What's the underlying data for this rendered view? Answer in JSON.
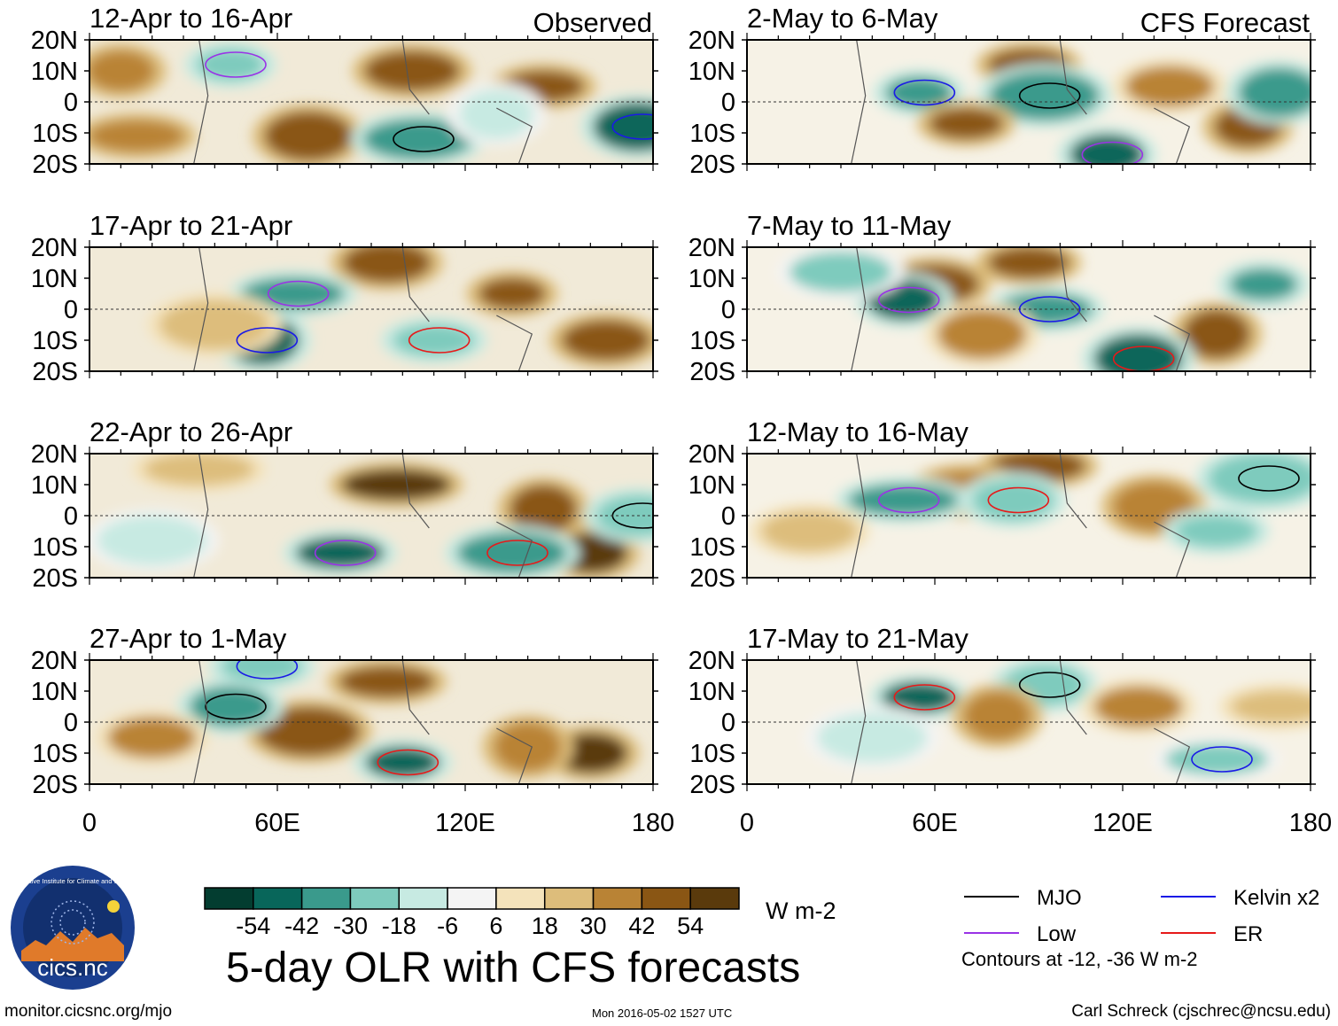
{
  "chart_data": {
    "type": "heatmap",
    "title": "5-day OLR with CFS forecasts",
    "units": "W m-2",
    "column_headers": {
      "observed": "Observed",
      "forecast": "CFS Forecast"
    },
    "lat_ticks": [
      "20N",
      "10N",
      "0",
      "10S",
      "20S"
    ],
    "lon_ticks": [
      "0",
      "60E",
      "120E",
      "180"
    ],
    "lat_range": [
      -20,
      20
    ],
    "lon_range": [
      0,
      180
    ],
    "colorbar": {
      "tick_labels": [
        "-54",
        "-42",
        "-30",
        "-18",
        "-6",
        "6",
        "18",
        "30",
        "42",
        "54"
      ],
      "colors": [
        "#033d30",
        "#08665a",
        "#3a9a8c",
        "#7ecbbd",
        "#c7eae2",
        "#f4f4f4",
        "#f4e3bb",
        "#ddbd7b",
        "#b98335",
        "#8a5614",
        "#5a3a0c"
      ]
    },
    "panels": [
      {
        "column": "observed",
        "label": "12-Apr to 16-Apr",
        "blobs": [
          {
            "lon": 145,
            "lat": 5,
            "v": 44
          },
          {
            "lon": 103,
            "lat": 10,
            "v": 46
          },
          {
            "lon": 70,
            "lat": -11,
            "v": 38
          },
          {
            "lon": 15,
            "lat": -11,
            "v": 32
          },
          {
            "lon": 105,
            "lat": -12,
            "v": -48
          },
          {
            "lon": 175,
            "lat": -8,
            "v": -52
          },
          {
            "lon": 45,
            "lat": 12,
            "v": -28
          },
          {
            "lon": 10,
            "lat": 10,
            "v": 28
          },
          {
            "lon": 130,
            "lat": -4,
            "v": -22
          }
        ]
      },
      {
        "column": "observed",
        "label": "17-Apr to 21-Apr",
        "blobs": [
          {
            "lon": 135,
            "lat": 5,
            "v": 42
          },
          {
            "lon": 95,
            "lat": 15,
            "v": 38
          },
          {
            "lon": 55,
            "lat": -10,
            "v": -50
          },
          {
            "lon": 65,
            "lat": 5,
            "v": -40
          },
          {
            "lon": 165,
            "lat": -10,
            "v": 38
          },
          {
            "lon": 40,
            "lat": -5,
            "v": 20
          },
          {
            "lon": 110,
            "lat": -10,
            "v": -30
          }
        ]
      },
      {
        "column": "observed",
        "label": "22-Apr to 26-Apr",
        "blobs": [
          {
            "lon": 98,
            "lat": 10,
            "v": 48
          },
          {
            "lon": 160,
            "lat": -12,
            "v": 50
          },
          {
            "lon": 145,
            "lat": 2,
            "v": 42
          },
          {
            "lon": 80,
            "lat": -12,
            "v": -52
          },
          {
            "lon": 135,
            "lat": -12,
            "v": -48
          },
          {
            "lon": 20,
            "lat": -8,
            "v": -20
          },
          {
            "lon": 35,
            "lat": 15,
            "v": 20
          },
          {
            "lon": 175,
            "lat": 0,
            "v": -30
          }
        ]
      },
      {
        "column": "observed",
        "label": "27-Apr to 1-May",
        "blobs": [
          {
            "lon": 95,
            "lat": 13,
            "v": 46
          },
          {
            "lon": 160,
            "lat": -10,
            "v": 50
          },
          {
            "lon": 70,
            "lat": -3,
            "v": 40
          },
          {
            "lon": 100,
            "lat": -13,
            "v": -50
          },
          {
            "lon": 45,
            "lat": 5,
            "v": -44
          },
          {
            "lon": 140,
            "lat": -8,
            "v": 28
          },
          {
            "lon": 55,
            "lat": 18,
            "v": -30
          },
          {
            "lon": 20,
            "lat": -5,
            "v": 24
          }
        ]
      },
      {
        "column": "forecast",
        "label": "2-May to 6-May",
        "blobs": [
          {
            "lon": 90,
            "lat": 12,
            "v": 44
          },
          {
            "lon": 160,
            "lat": -8,
            "v": 42
          },
          {
            "lon": 95,
            "lat": 2,
            "v": -48
          },
          {
            "lon": 55,
            "lat": 3,
            "v": -42
          },
          {
            "lon": 115,
            "lat": -17,
            "v": -50
          },
          {
            "lon": 170,
            "lat": 3,
            "v": -44
          },
          {
            "lon": 70,
            "lat": -7,
            "v": 36
          },
          {
            "lon": 135,
            "lat": 5,
            "v": 24
          }
        ]
      },
      {
        "column": "forecast",
        "label": "7-May to 11-May",
        "blobs": [
          {
            "lon": 90,
            "lat": 15,
            "v": 44
          },
          {
            "lon": 60,
            "lat": 8,
            "v": 38
          },
          {
            "lon": 150,
            "lat": -8,
            "v": 42
          },
          {
            "lon": 95,
            "lat": 0,
            "v": -46
          },
          {
            "lon": 50,
            "lat": 3,
            "v": -50
          },
          {
            "lon": 125,
            "lat": -16,
            "v": -52
          },
          {
            "lon": 165,
            "lat": 8,
            "v": -42
          },
          {
            "lon": 30,
            "lat": 12,
            "v": -26
          },
          {
            "lon": 75,
            "lat": -8,
            "v": 24
          }
        ]
      },
      {
        "column": "forecast",
        "label": "12-May to 16-May",
        "blobs": [
          {
            "lon": 93,
            "lat": 16,
            "v": 46
          },
          {
            "lon": 70,
            "lat": 8,
            "v": 32
          },
          {
            "lon": 130,
            "lat": 3,
            "v": 30
          },
          {
            "lon": 50,
            "lat": 5,
            "v": -48
          },
          {
            "lon": 85,
            "lat": 5,
            "v": -30
          },
          {
            "lon": 165,
            "lat": 12,
            "v": -34
          },
          {
            "lon": 150,
            "lat": -5,
            "v": -30
          },
          {
            "lon": 20,
            "lat": -5,
            "v": 18
          }
        ]
      },
      {
        "column": "forecast",
        "label": "17-May to 21-May",
        "blobs": [
          {
            "lon": 55,
            "lat": 8,
            "v": -50
          },
          {
            "lon": 95,
            "lat": 12,
            "v": -30
          },
          {
            "lon": 80,
            "lat": 2,
            "v": 28
          },
          {
            "lon": 150,
            "lat": -12,
            "v": -26
          },
          {
            "lon": 125,
            "lat": 5,
            "v": 24
          },
          {
            "lon": 40,
            "lat": -5,
            "v": -20
          },
          {
            "lon": 170,
            "lat": 5,
            "v": 18
          }
        ]
      }
    ],
    "legend": [
      {
        "label": "MJO",
        "color": "#000000"
      },
      {
        "label": "Kelvin x2",
        "color": "#1a1ae6"
      },
      {
        "label": "Low",
        "color": "#9933e6"
      },
      {
        "label": "ER",
        "color": "#e61a1a"
      }
    ],
    "contours_note": "Contours at -12, -36 W m-2"
  },
  "logo": {
    "text": "cics.nc",
    "ring_text": "Cooperative Institute for Climate and Satellites"
  },
  "footer": {
    "url": "monitor.cicsnc.org/mjo",
    "timestamp": "Mon 2016-05-02 1527 UTC",
    "credit": "Carl Schreck (cjschrec@ncsu.edu)"
  }
}
